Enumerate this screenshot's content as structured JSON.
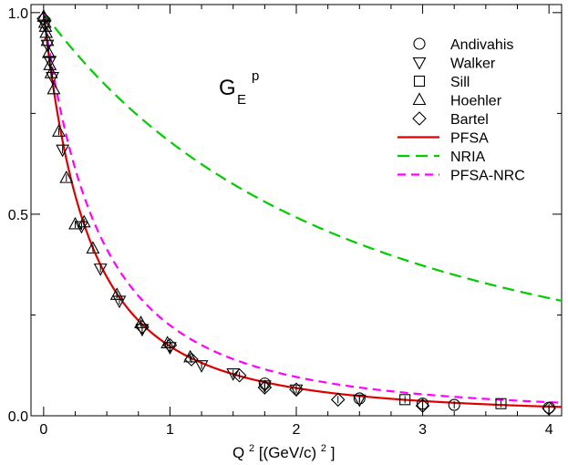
{
  "chart_data": {
    "type": "scatter",
    "title": "",
    "annotation": {
      "main": "G",
      "sub": "E",
      "sup": "p"
    },
    "xlabel": {
      "base": "Q",
      "sup": "2",
      "rest": " [(GeV/c)",
      "sup2": "2",
      "end": "]"
    },
    "ylabel": "",
    "xlim": [
      -0.1,
      4.1
    ],
    "ylim": [
      0,
      1.02
    ],
    "xticks": [
      0,
      1,
      2,
      3,
      4
    ],
    "xtick_labels": [
      "0",
      "1",
      "2",
      "3",
      "4"
    ],
    "yticks": [
      0,
      0.5,
      1.0
    ],
    "ytick_labels": [
      "0.0",
      "0.5",
      "1.0"
    ],
    "grid": false,
    "legend_position": "top-right",
    "colors": {
      "PFSA": "#dd0000",
      "NRIA": "#00cc00",
      "PFSA-NRC": "#ff00ff",
      "markers": "#000000"
    },
    "series": [
      {
        "name": "Andivahis",
        "kind": "points",
        "marker": "circle",
        "x": [
          1.75,
          2.5,
          3.0,
          3.25,
          4.0
        ],
        "y": [
          0.08,
          0.043,
          0.03,
          0.027,
          0.02
        ]
      },
      {
        "name": "Walker",
        "kind": "points",
        "marker": "triangle-down",
        "x": [
          0.01,
          0.03,
          0.05,
          0.07,
          0.15,
          0.3,
          0.45,
          0.6,
          0.78,
          1.0,
          1.25,
          1.5,
          1.75,
          2.0,
          2.5
        ],
        "y": [
          0.97,
          0.92,
          0.88,
          0.84,
          0.66,
          0.47,
          0.365,
          0.285,
          0.215,
          0.17,
          0.125,
          0.105,
          0.075,
          0.065,
          0.04
        ]
      },
      {
        "name": "Sill",
        "kind": "points",
        "marker": "square",
        "x": [
          2.86,
          3.62
        ],
        "y": [
          0.04,
          0.03
        ]
      },
      {
        "name": "Hoehler",
        "kind": "points",
        "marker": "triangle-up",
        "x": [
          0.0,
          0.01,
          0.015,
          0.02,
          0.03,
          0.04,
          0.05,
          0.06,
          0.08,
          0.12,
          0.18,
          0.25,
          0.32,
          0.39,
          0.58,
          0.77,
          0.98,
          1.16
        ],
        "y": [
          0.99,
          0.975,
          0.965,
          0.95,
          0.93,
          0.9,
          0.87,
          0.85,
          0.81,
          0.705,
          0.59,
          0.475,
          0.48,
          0.415,
          0.3,
          0.23,
          0.18,
          0.145
        ]
      },
      {
        "name": "Bartel",
        "kind": "points",
        "marker": "diamond",
        "x": [
          0.0,
          0.78,
          1.0,
          1.17,
          1.55,
          1.75,
          2.0,
          2.33,
          3.0,
          4.0
        ],
        "y": [
          0.985,
          0.22,
          0.175,
          0.14,
          0.1,
          0.07,
          0.065,
          0.04,
          0.025,
          0.018
        ]
      },
      {
        "name": "PFSA",
        "kind": "line",
        "style": "solid",
        "formula": "1/(1+Q2/0.71)^2"
      },
      {
        "name": "NRIA",
        "kind": "line",
        "style": "dashed-long",
        "formula": "1/(1+Q2/4.7)^2"
      },
      {
        "name": "PFSA-NRC",
        "kind": "line",
        "style": "dashed-short",
        "formula": "1/(1+Q2/0.90)^2"
      }
    ]
  }
}
